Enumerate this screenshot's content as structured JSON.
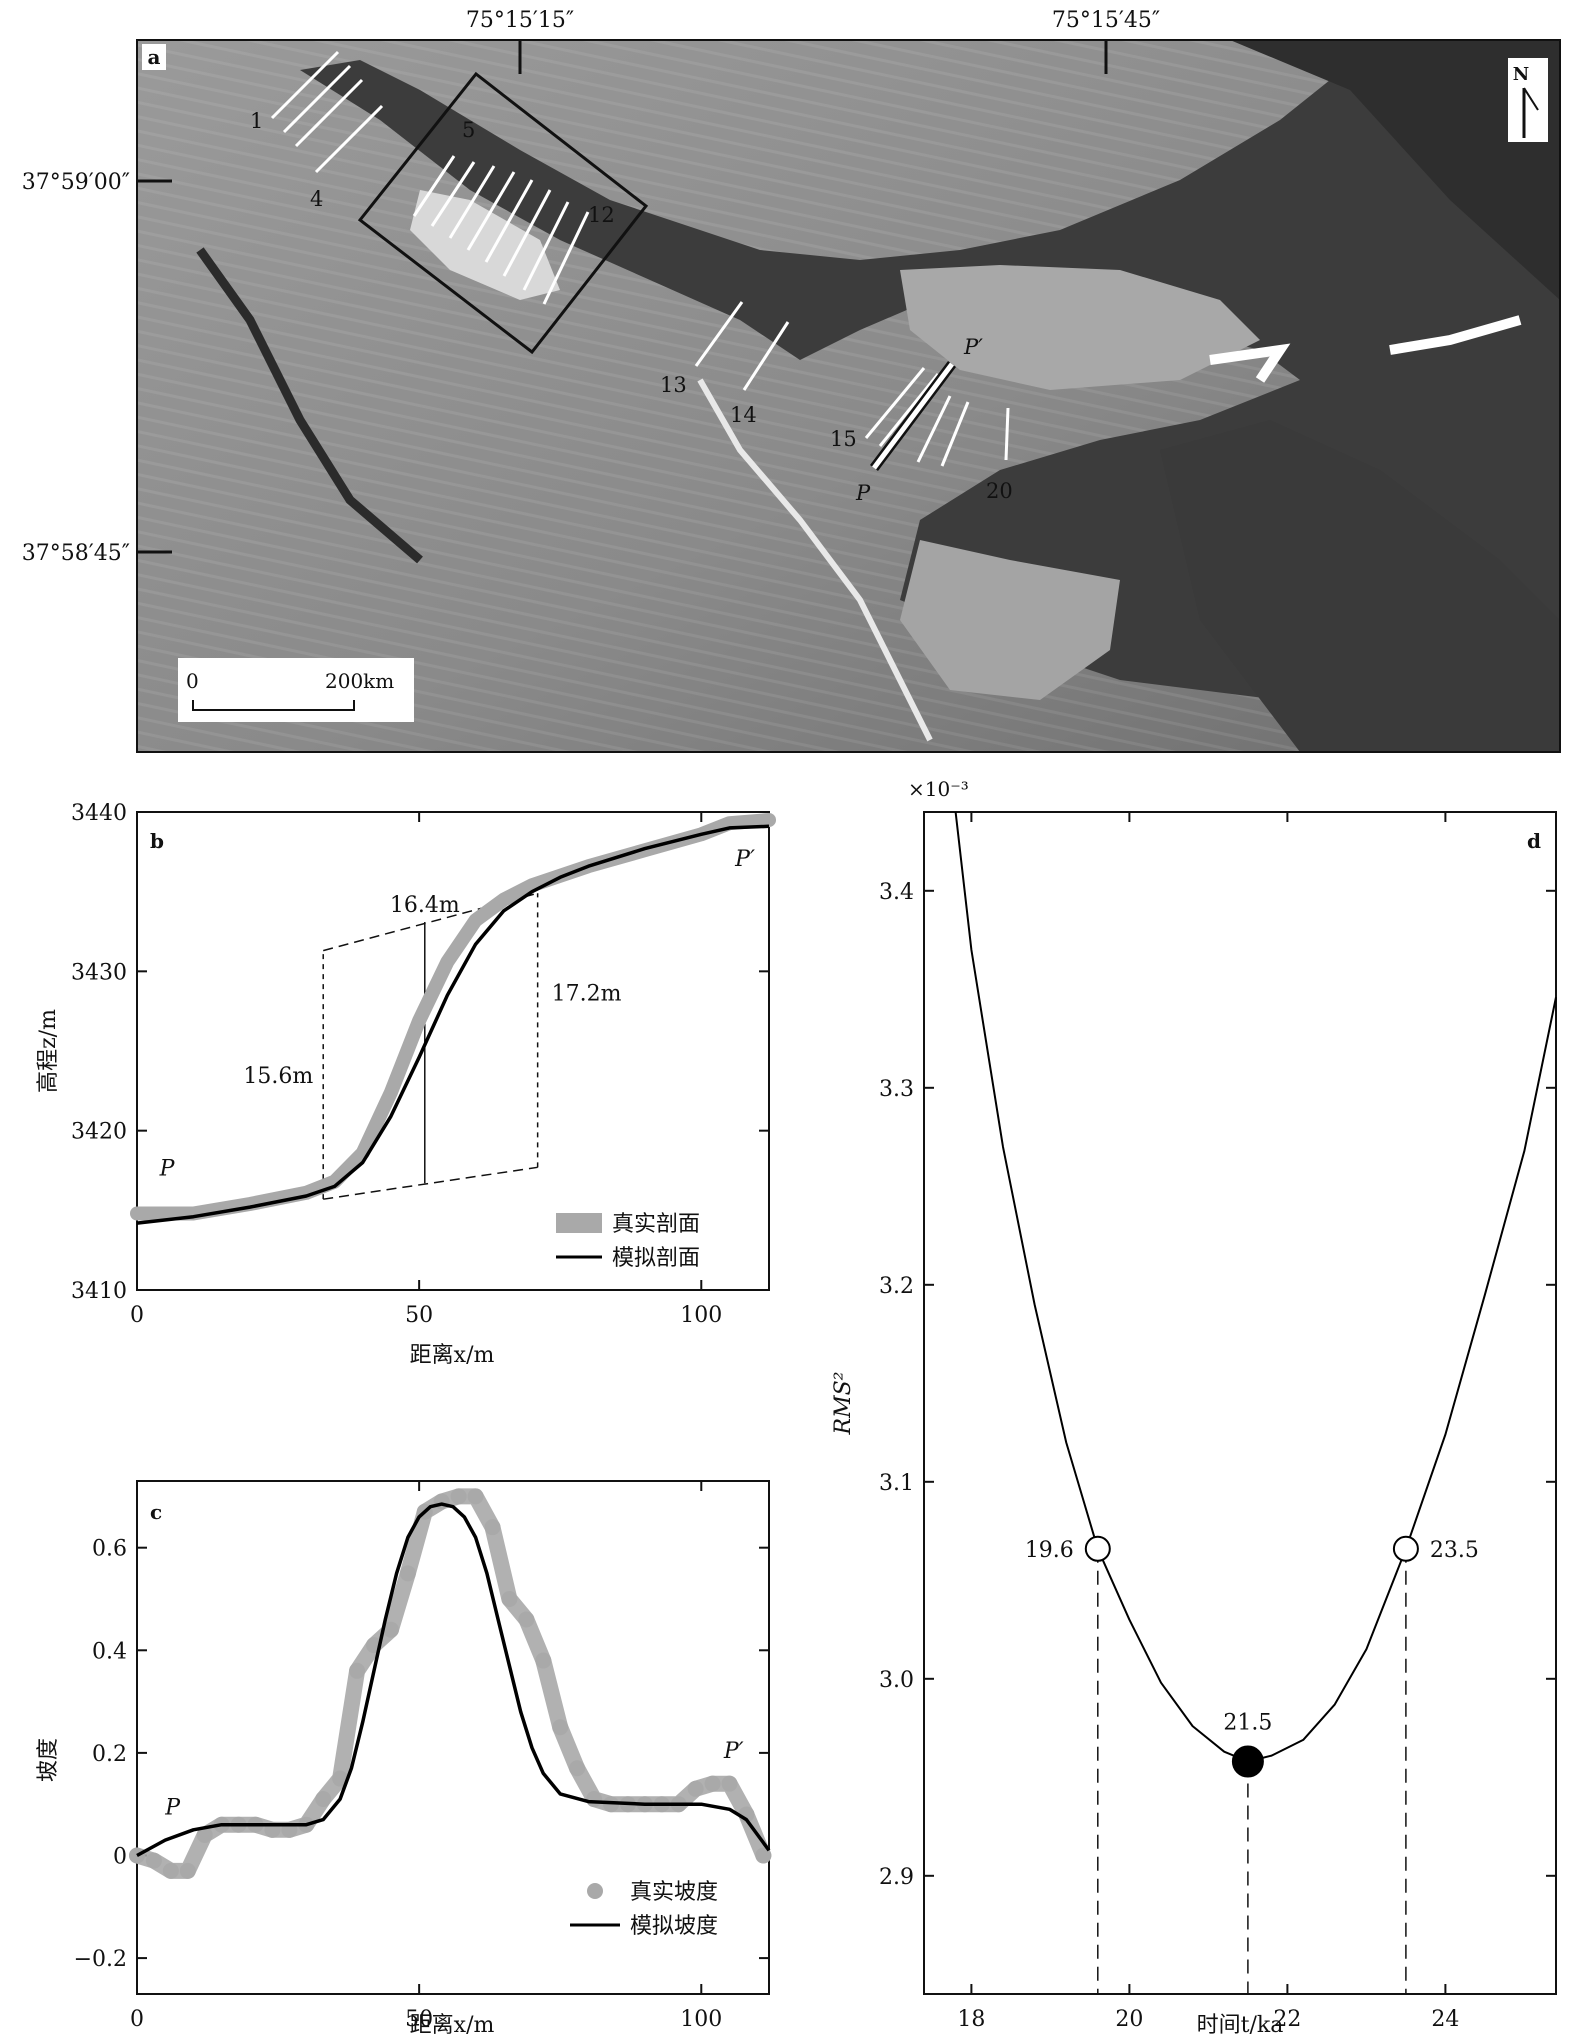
{
  "panel_a": {
    "letter": "a",
    "north_label": "N",
    "lon_labels": [
      "75°15′15″",
      "75°15′45″"
    ],
    "lat_labels": [
      "37°59′00″",
      "37°58′45″"
    ],
    "profile_labels": [
      "1",
      "4",
      "5",
      "12",
      "13",
      "14",
      "15",
      "20"
    ],
    "profile_endpoints": [
      "P",
      "P′"
    ],
    "scale_bar": {
      "start": "0",
      "end": "200km"
    }
  },
  "chart_data": [
    {
      "panel": "b",
      "type": "line",
      "xlabel": "距离x/m",
      "ylabel": "高程z/m",
      "xlim": [
        0,
        112
      ],
      "ylim": [
        3410,
        3440
      ],
      "xticks": [
        0,
        50,
        100
      ],
      "yticks": [
        3410,
        3420,
        3430,
        3440
      ],
      "series": [
        {
          "name": "真实剖面",
          "color": "#a9a9a9",
          "x": [
            0,
            10,
            20,
            30,
            35,
            40,
            45,
            50,
            55,
            60,
            65,
            70,
            75,
            80,
            90,
            100,
            105,
            112
          ],
          "y": [
            3414.8,
            3414.8,
            3415.4,
            3416.1,
            3416.8,
            3418.6,
            3422.4,
            3426.9,
            3430.6,
            3433.2,
            3434.5,
            3435.4,
            3436.0,
            3436.6,
            3437.6,
            3438.6,
            3439.3,
            3439.5
          ]
        },
        {
          "name": "模拟剖面",
          "color": "#000000",
          "x": [
            0,
            10,
            20,
            30,
            35,
            40,
            45,
            50,
            55,
            60,
            65,
            70,
            75,
            80,
            90,
            100,
            105,
            112
          ],
          "y": [
            3414.2,
            3414.6,
            3415.2,
            3415.9,
            3416.5,
            3418.0,
            3420.9,
            3424.6,
            3428.5,
            3431.7,
            3433.8,
            3435.0,
            3435.9,
            3436.6,
            3437.7,
            3438.6,
            3439.0,
            3439.1
          ]
        }
      ],
      "annotations": [
        {
          "label": "15.6m",
          "x": 33,
          "y_low": 3415.7,
          "y_high": 3431.3
        },
        {
          "label": "16.4m",
          "x": 51,
          "y_low": 3416.7,
          "y_high": 3433.1
        },
        {
          "label": "17.2m",
          "x": 71,
          "y_low": 3417.7,
          "y_high": 3434.9
        }
      ],
      "endpoint_labels": [
        {
          "text": "P",
          "x": 4,
          "y": 3417.2
        },
        {
          "text": "P′",
          "x": 106,
          "y": 3436.6
        }
      ],
      "legend_position": "bottom-right"
    },
    {
      "panel": "c",
      "type": "line",
      "xlabel": "距离x/m",
      "ylabel": "坡度",
      "xlim": [
        0,
        112
      ],
      "ylim": [
        -0.27,
        0.73
      ],
      "xticks": [
        0,
        50,
        100
      ],
      "yticks": [
        -0.2,
        0,
        0.2,
        0.4,
        0.6
      ],
      "series": [
        {
          "name": "真实坡度",
          "color": "#a9a9a9",
          "style": "points",
          "x": [
            0,
            3,
            6,
            9,
            12,
            15,
            18,
            21,
            24,
            27,
            30,
            33,
            36,
            39,
            42,
            45,
            48,
            51,
            54,
            57,
            60,
            63,
            66,
            69,
            72,
            75,
            78,
            81,
            84,
            87,
            90,
            93,
            96,
            99,
            102,
            105,
            108,
            111
          ],
          "y": [
            0.0,
            -0.01,
            -0.03,
            -0.03,
            0.04,
            0.06,
            0.06,
            0.06,
            0.05,
            0.05,
            0.06,
            0.11,
            0.15,
            0.36,
            0.41,
            0.44,
            0.55,
            0.67,
            0.69,
            0.7,
            0.7,
            0.64,
            0.5,
            0.46,
            0.38,
            0.25,
            0.17,
            0.11,
            0.1,
            0.1,
            0.1,
            0.1,
            0.1,
            0.13,
            0.14,
            0.14,
            0.08,
            0.0
          ]
        },
        {
          "name": "模拟坡度",
          "color": "#000000",
          "style": "line",
          "x": [
            0,
            5,
            10,
            15,
            20,
            25,
            30,
            33,
            36,
            38,
            40,
            42,
            44,
            46,
            48,
            50,
            52,
            54,
            56,
            58,
            60,
            62,
            64,
            66,
            68,
            70,
            72,
            75,
            80,
            90,
            100,
            105,
            108,
            110,
            112
          ],
          "y": [
            0.0,
            0.03,
            0.05,
            0.06,
            0.06,
            0.06,
            0.06,
            0.07,
            0.11,
            0.17,
            0.26,
            0.36,
            0.46,
            0.55,
            0.62,
            0.66,
            0.68,
            0.685,
            0.68,
            0.66,
            0.62,
            0.55,
            0.46,
            0.37,
            0.28,
            0.21,
            0.16,
            0.12,
            0.105,
            0.1,
            0.1,
            0.09,
            0.07,
            0.04,
            0.01
          ]
        }
      ],
      "endpoint_labels": [
        {
          "text": "P",
          "x": 5,
          "y": 0.08
        },
        {
          "text": "P′",
          "x": 104,
          "y": 0.19
        }
      ],
      "legend_position": "bottom-right"
    },
    {
      "panel": "d",
      "type": "line",
      "xlabel": "时间t/ka",
      "ylabel": "RMS²",
      "exponent_label": "×10⁻³",
      "xlim": [
        17.4,
        25.4
      ],
      "ylim": [
        2.84,
        3.44
      ],
      "xticks": [
        18,
        20,
        22,
        24
      ],
      "yticks": [
        2.9,
        3.0,
        3.1,
        3.2,
        3.3,
        3.4
      ],
      "curve": {
        "x": [
          17.8,
          18.0,
          18.4,
          18.8,
          19.2,
          19.6,
          20.0,
          20.4,
          20.8,
          21.2,
          21.5,
          21.8,
          22.2,
          22.6,
          23.0,
          23.5,
          24.0,
          24.5,
          25.0,
          25.4
        ],
        "y": [
          3.44,
          3.37,
          3.27,
          3.19,
          3.12,
          3.066,
          3.03,
          2.998,
          2.976,
          2.963,
          2.958,
          2.961,
          2.969,
          2.987,
          3.015,
          3.066,
          3.124,
          3.195,
          3.268,
          3.346
        ]
      },
      "points": [
        {
          "label": "19.6",
          "x": 19.6,
          "y": 3.066,
          "filled": false
        },
        {
          "label": "21.5",
          "x": 21.5,
          "y": 2.958,
          "filled": true
        },
        {
          "label": "23.5",
          "x": 23.5,
          "y": 3.066,
          "filled": false
        }
      ]
    }
  ]
}
